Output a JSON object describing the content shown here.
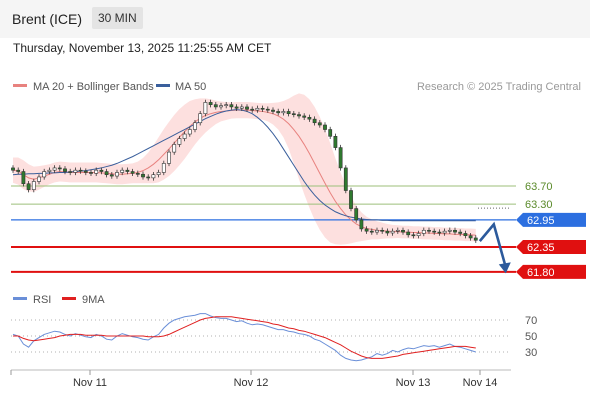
{
  "header": {
    "title": "Brent (ICE)",
    "timeframe": "30 MIN"
  },
  "timestamp": "Thursday, November 13, 2025 11:25:55 AM CET",
  "legend": {
    "ma20": "MA 20 + Bollinger Bands",
    "ma50": "MA 50",
    "credit": "Research © 2025 Trading Central"
  },
  "rsi_legend": {
    "rsi": "RSI",
    "ma": "9MA"
  },
  "colors": {
    "ma20": "#e8827f",
    "ma50": "#3a5f9c",
    "band": "#fde0df",
    "candle": "#2f7a2f",
    "red": "#e01010",
    "blue": "#2c6fe0",
    "green": "#9cbf7a",
    "rsi": "#6a8fd8",
    "rsi_ma": "#e02020"
  },
  "chart_data": {
    "type": "candlestick",
    "price_levels": [
      {
        "label": "63.70",
        "value": 63.7,
        "style": "resistance"
      },
      {
        "label": "63.30",
        "value": 63.3,
        "style": "resistance"
      },
      {
        "label": "62.95",
        "value": 62.95,
        "style": "pivot"
      },
      {
        "label": "62.35",
        "value": 62.35,
        "style": "support"
      },
      {
        "label": "61.80",
        "value": 61.8,
        "style": "support"
      }
    ],
    "x_ticks": [
      "Nov 11",
      "Nov 12",
      "Nov 13",
      "Nov 14"
    ],
    "rsi_ticks": [
      70,
      50,
      30
    ],
    "close": [
      64.05,
      64.02,
      63.75,
      63.62,
      63.8,
      63.9,
      64.02,
      64.05,
      64.1,
      64.08,
      64.02,
      64.0,
      64.05,
      64.03,
      64.0,
      63.98,
      64.05,
      64.02,
      63.95,
      63.92,
      64.0,
      64.05,
      64.02,
      63.98,
      63.96,
      63.9,
      63.88,
      63.95,
      64.0,
      64.2,
      64.45,
      64.62,
      64.75,
      64.85,
      64.95,
      65.1,
      65.3,
      65.55,
      65.5,
      65.45,
      65.48,
      65.5,
      65.45,
      65.42,
      65.45,
      65.4,
      65.38,
      65.42,
      65.4,
      65.38,
      65.35,
      65.32,
      65.35,
      65.3,
      65.28,
      65.25,
      65.22,
      65.18,
      65.1,
      65.05,
      64.95,
      64.8,
      64.55,
      64.1,
      63.6,
      63.2,
      62.95,
      62.75,
      62.7,
      62.68,
      62.72,
      62.7,
      62.66,
      62.7,
      62.72,
      62.68,
      62.62,
      62.6,
      62.65,
      62.72,
      62.7,
      62.68,
      62.66,
      62.7,
      62.72,
      62.68,
      62.65,
      62.6,
      62.55,
      62.5
    ],
    "ma20": [
      64.05,
      64.03,
      63.95,
      63.88,
      63.85,
      63.88,
      63.92,
      63.96,
      64.0,
      64.02,
      64.01,
      64.0,
      64.0,
      64.0,
      64.0,
      64.0,
      64.0,
      63.99,
      63.98,
      63.97,
      63.96,
      63.96,
      63.97,
      63.98,
      64.0,
      64.04,
      64.1,
      64.18,
      64.28,
      64.4,
      64.52,
      64.65,
      64.78,
      64.9,
      65.02,
      65.12,
      65.2,
      65.26,
      65.3,
      65.33,
      65.35,
      65.36,
      65.37,
      65.38,
      65.38,
      65.38,
      65.37,
      65.36,
      65.35,
      65.33,
      65.3,
      65.25,
      65.18,
      65.08,
      64.95,
      64.8,
      64.62,
      64.42,
      64.2,
      63.98,
      63.76,
      63.55,
      63.36,
      63.2,
      63.06,
      62.95,
      62.86,
      62.8,
      62.76,
      62.74,
      62.72,
      62.71,
      62.7,
      62.69,
      62.69,
      62.68,
      62.68,
      62.67,
      62.67,
      62.66,
      62.66,
      62.65,
      62.65,
      62.64,
      62.64,
      62.63,
      62.63,
      62.62,
      62.62,
      62.61
    ],
    "ma50": [
      63.95,
      63.96,
      63.96,
      63.97,
      63.97,
      63.98,
      63.98,
      63.99,
      63.99,
      64.0,
      64.0,
      64.01,
      64.02,
      64.03,
      64.04,
      64.06,
      64.08,
      64.1,
      64.13,
      64.16,
      64.2,
      64.25,
      64.3,
      64.35,
      64.41,
      64.47,
      64.53,
      64.59,
      64.65,
      64.71,
      64.77,
      64.83,
      64.89,
      64.95,
      65.01,
      65.07,
      65.13,
      65.19,
      65.24,
      65.29,
      65.33,
      65.36,
      65.38,
      65.39,
      65.38,
      65.35,
      65.3,
      65.22,
      65.12,
      65.0,
      64.86,
      64.7,
      64.52,
      64.34,
      64.16,
      63.98,
      63.8,
      63.64,
      63.5,
      63.38,
      63.28,
      63.2,
      63.13,
      63.08,
      63.04,
      63.01,
      62.99,
      62.97,
      62.96,
      62.95,
      62.95,
      62.94,
      62.94,
      62.93,
      62.93,
      62.93,
      62.93,
      62.93,
      62.93,
      62.93,
      62.93,
      62.93,
      62.93,
      62.93,
      62.93,
      62.93,
      62.93,
      62.93,
      62.93,
      62.93
    ],
    "rsi": [
      52,
      50,
      40,
      36,
      44,
      48,
      52,
      54,
      56,
      55,
      52,
      50,
      53,
      51,
      49,
      48,
      52,
      50,
      46,
      45,
      50,
      53,
      51,
      49,
      48,
      46,
      45,
      49,
      52,
      60,
      66,
      70,
      72,
      74,
      75,
      76,
      78,
      78,
      75,
      73,
      72,
      72,
      70,
      68,
      69,
      66,
      64,
      65,
      64,
      62,
      60,
      58,
      58,
      56,
      55,
      53,
      52,
      50,
      46,
      44,
      40,
      36,
      32,
      26,
      22,
      20,
      19,
      20,
      22,
      24,
      28,
      26,
      28,
      32,
      30,
      33,
      35,
      34,
      36,
      38,
      37,
      38,
      36,
      38,
      40,
      37,
      36,
      34,
      32,
      30
    ],
    "rsi_ma": [
      50,
      50,
      47,
      45,
      44,
      45,
      46,
      47,
      48,
      50,
      51,
      52,
      52,
      52,
      51,
      51,
      51,
      51,
      50,
      50,
      50,
      50,
      50,
      50,
      50,
      50,
      49,
      49,
      49,
      50,
      52,
      55,
      58,
      61,
      64,
      67,
      70,
      72,
      73,
      74,
      74,
      74,
      74,
      73,
      72,
      71,
      70,
      69,
      68,
      67,
      65,
      64,
      62,
      60,
      59,
      57,
      56,
      54,
      52,
      50,
      48,
      45,
      42,
      39,
      35,
      31,
      28,
      25,
      23,
      22,
      22,
      22,
      23,
      24,
      25,
      27,
      28,
      29,
      30,
      31,
      32,
      33,
      34,
      35,
      36,
      37,
      37,
      37,
      36,
      35
    ]
  }
}
